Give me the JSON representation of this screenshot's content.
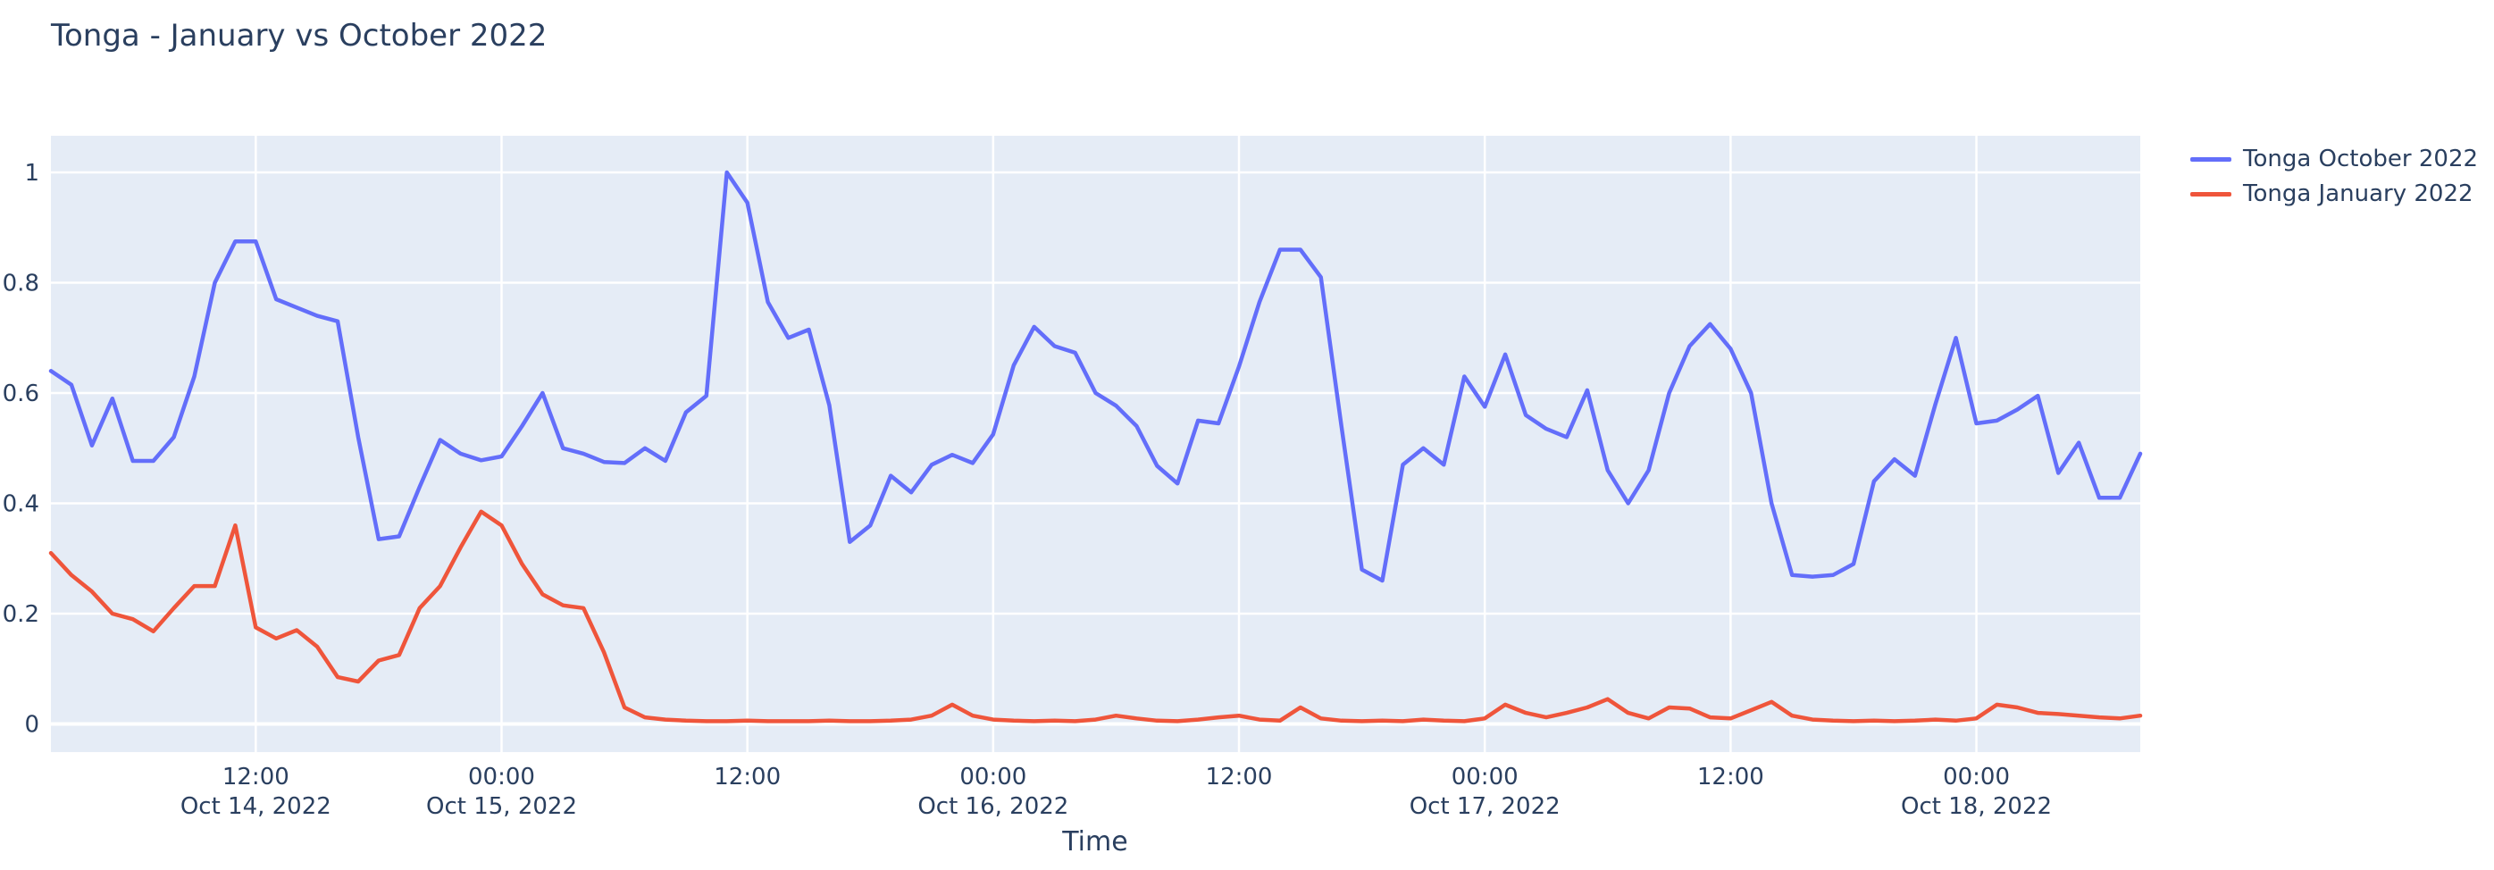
{
  "title": "Tonga - January vs October 2022",
  "colors": {
    "plot_background": "#e5ecf6",
    "gridline": "#ffffff",
    "text": "#2a3f5f",
    "october_line": "#636efa",
    "january_line": "#ef553b"
  },
  "legend": {
    "items": [
      {
        "label": "Tonga October 2022",
        "color": "#636efa"
      },
      {
        "label": "Tonga January 2022",
        "color": "#ef553b"
      }
    ]
  },
  "axes": {
    "x_title": "Time",
    "y_tick_labels": [
      "0",
      "0.2",
      "0.4",
      "0.6",
      "0.8",
      "1"
    ],
    "y_tick_values": [
      0,
      0.2,
      0.4,
      0.6,
      0.8,
      1
    ],
    "x_ticks": [
      {
        "hour": 10,
        "time": "12:00",
        "date": "Oct 14, 2022"
      },
      {
        "hour": 22,
        "time": "00:00",
        "date": "Oct 15, 2022"
      },
      {
        "hour": 34,
        "time": "12:00",
        "date": ""
      },
      {
        "hour": 46,
        "time": "00:00",
        "date": "Oct 16, 2022"
      },
      {
        "hour": 58,
        "time": "12:00",
        "date": ""
      },
      {
        "hour": 70,
        "time": "00:00",
        "date": "Oct 17, 2022"
      },
      {
        "hour": 82,
        "time": "12:00",
        "date": ""
      },
      {
        "hour": 94,
        "time": "00:00",
        "date": "Oct 18, 2022"
      }
    ]
  },
  "chart_data": {
    "type": "line",
    "title": "Tonga - January vs October 2022",
    "xlabel": "Time",
    "ylabel": "",
    "x_start": "2022-10-14 02:00",
    "x_step_hours": 1,
    "x_end": "2022-10-18 08:00",
    "ylim": [
      0,
      1
    ],
    "grid": true,
    "legend_position": "right",
    "series": [
      {
        "name": "Tonga October 2022",
        "color": "#636efa",
        "values": [
          0.64,
          0.615,
          0.505,
          0.59,
          0.477,
          0.477,
          0.52,
          0.63,
          0.8,
          0.875,
          0.875,
          0.77,
          0.755,
          0.74,
          0.73,
          0.52,
          0.335,
          0.34,
          0.43,
          0.515,
          0.49,
          0.478,
          0.485,
          0.54,
          0.6,
          0.5,
          0.49,
          0.475,
          0.473,
          0.5,
          0.477,
          0.565,
          0.595,
          1.0,
          0.945,
          0.765,
          0.7,
          0.715,
          0.578,
          0.33,
          0.36,
          0.45,
          0.42,
          0.47,
          0.488,
          0.473,
          0.525,
          0.65,
          0.72,
          0.685,
          0.673,
          0.6,
          0.577,
          0.54,
          0.468,
          0.436,
          0.55,
          0.545,
          0.648,
          0.765,
          0.86,
          0.86,
          0.81,
          0.54,
          0.28,
          0.26,
          0.47,
          0.5,
          0.47,
          0.63,
          0.575,
          0.67,
          0.56,
          0.535,
          0.52,
          0.605,
          0.46,
          0.4,
          0.46,
          0.6,
          0.685,
          0.725,
          0.68,
          0.6,
          0.4,
          0.27,
          0.267,
          0.27,
          0.29,
          0.44,
          0.48,
          0.45,
          0.58,
          0.7,
          0.545,
          0.55,
          0.57,
          0.595,
          0.455,
          0.51,
          0.41,
          0.41,
          0.49
        ]
      },
      {
        "name": "Tonga January 2022",
        "color": "#ef553b",
        "values": [
          0.31,
          0.27,
          0.24,
          0.2,
          0.19,
          0.168,
          0.21,
          0.25,
          0.25,
          0.36,
          0.175,
          0.155,
          0.17,
          0.14,
          0.085,
          0.077,
          0.115,
          0.125,
          0.21,
          0.25,
          0.32,
          0.385,
          0.36,
          0.29,
          0.235,
          0.215,
          0.21,
          0.13,
          0.03,
          0.012,
          0.008,
          0.006,
          0.005,
          0.005,
          0.006,
          0.005,
          0.005,
          0.005,
          0.006,
          0.005,
          0.005,
          0.006,
          0.008,
          0.015,
          0.035,
          0.015,
          0.008,
          0.006,
          0.005,
          0.006,
          0.005,
          0.008,
          0.015,
          0.01,
          0.006,
          0.005,
          0.008,
          0.012,
          0.015,
          0.008,
          0.006,
          0.03,
          0.01,
          0.006,
          0.005,
          0.006,
          0.005,
          0.008,
          0.006,
          0.005,
          0.01,
          0.035,
          0.02,
          0.012,
          0.02,
          0.03,
          0.045,
          0.02,
          0.01,
          0.03,
          0.028,
          0.012,
          0.01,
          0.025,
          0.04,
          0.015,
          0.008,
          0.006,
          0.005,
          0.006,
          0.005,
          0.006,
          0.008,
          0.006,
          0.01,
          0.035,
          0.03,
          0.02,
          0.018,
          0.015,
          0.012,
          0.01,
          0.015
        ]
      }
    ]
  }
}
